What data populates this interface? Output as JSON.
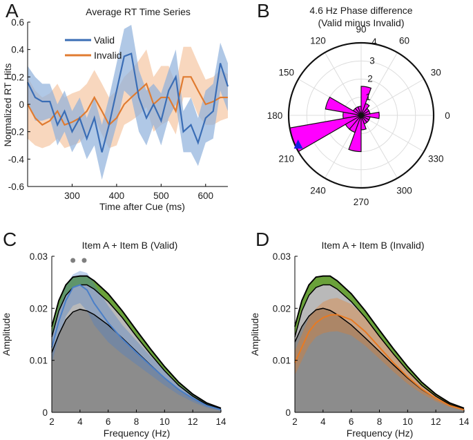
{
  "chart_data": [
    {
      "panel": "A",
      "type": "line",
      "title": "Average RT Time Series",
      "xlabel": "Time after Cue (ms)",
      "ylabel": "Normalized RT Hits",
      "xlim": [
        200,
        650
      ],
      "ylim": [
        -0.6,
        0.6
      ],
      "xticks": [
        300,
        400,
        500,
        600
      ],
      "yticks": [
        -0.6,
        -0.4,
        -0.2,
        0,
        0.2,
        0.4,
        0.6
      ],
      "x": [
        200,
        217,
        233,
        250,
        267,
        283,
        300,
        317,
        333,
        350,
        367,
        383,
        400,
        417,
        433,
        450,
        467,
        483,
        500,
        517,
        533,
        550,
        567,
        583,
        600,
        617,
        633,
        650
      ],
      "series": [
        {
          "name": "Valid",
          "color": "#3a6db5",
          "band_color": "#8fb0dc",
          "values": [
            0.16,
            0.05,
            0.02,
            0.02,
            -0.15,
            -0.05,
            -0.2,
            -0.1,
            -0.25,
            -0.1,
            -0.35,
            -0.15,
            0.1,
            0.35,
            0.37,
            0.05,
            -0.1,
            0.0,
            -0.12,
            0.1,
            0.2,
            -0.2,
            -0.15,
            -0.28,
            -0.1,
            -0.05,
            0.3,
            0.13
          ],
          "lower": [
            0.02,
            -0.12,
            -0.12,
            -0.1,
            -0.3,
            -0.2,
            -0.35,
            -0.25,
            -0.4,
            -0.3,
            -0.55,
            -0.35,
            -0.15,
            0.1,
            0.05,
            -0.2,
            -0.3,
            -0.15,
            -0.3,
            -0.1,
            0.0,
            -0.35,
            -0.35,
            -0.45,
            -0.28,
            -0.25,
            0.1,
            -0.05
          ],
          "upper": [
            0.28,
            0.2,
            0.15,
            0.15,
            0.0,
            0.1,
            -0.05,
            0.05,
            -0.1,
            0.05,
            -0.15,
            0.05,
            0.3,
            0.55,
            0.58,
            0.25,
            0.1,
            0.15,
            0.08,
            0.25,
            0.4,
            -0.05,
            0.05,
            -0.1,
            0.1,
            0.15,
            0.45,
            0.3
          ]
        },
        {
          "name": "Invalid",
          "color": "#e07b30",
          "band_color": "#f5c9a8",
          "values": [
            0.0,
            -0.1,
            -0.15,
            -0.12,
            -0.05,
            -0.15,
            -0.13,
            -0.1,
            -0.05,
            0.05,
            -0.05,
            -0.15,
            -0.1,
            0.0,
            0.05,
            0.1,
            0.15,
            0.0,
            0.05,
            0.05,
            -0.05,
            0.2,
            0.2,
            0.1,
            0.0,
            0.02,
            0.05,
            0.05
          ],
          "lower": [
            -0.25,
            -0.3,
            -0.32,
            -0.3,
            -0.25,
            -0.32,
            -0.3,
            -0.28,
            -0.22,
            -0.1,
            -0.22,
            -0.32,
            -0.3,
            -0.15,
            -0.12,
            -0.08,
            -0.02,
            -0.2,
            -0.15,
            -0.12,
            -0.22,
            0.05,
            0.05,
            -0.08,
            -0.15,
            -0.15,
            -0.12,
            -0.1
          ],
          "upper": [
            0.2,
            0.1,
            0.05,
            0.08,
            0.15,
            0.05,
            0.08,
            0.1,
            0.15,
            0.25,
            0.15,
            0.05,
            0.1,
            0.2,
            0.25,
            0.32,
            0.4,
            0.2,
            0.28,
            0.28,
            0.15,
            0.42,
            0.42,
            0.3,
            0.18,
            0.2,
            0.25,
            0.22
          ]
        }
      ]
    },
    {
      "panel": "B",
      "type": "polar-histogram",
      "title": "4.6 Hz Phase difference",
      "subtitle": "(Valid minus Invalid)",
      "rlim": [
        0,
        4
      ],
      "rticks": [
        "1",
        "2",
        "3",
        "4"
      ],
      "angle_labels": [
        "0",
        "30",
        "60",
        "90",
        "120",
        "150",
        "180",
        "210",
        "240",
        "270",
        "300",
        "330"
      ],
      "bin_width_deg": 20,
      "bin_centers_deg": [
        0,
        20,
        40,
        60,
        80,
        100,
        120,
        140,
        160,
        180,
        200,
        220,
        240,
        260,
        280,
        300,
        320,
        340
      ],
      "counts": [
        1,
        0.5,
        0.5,
        0.7,
        1.6,
        0.5,
        0.5,
        0.5,
        2,
        1,
        4,
        1,
        1,
        2,
        0.8,
        0.5,
        0.5,
        0.5
      ],
      "bar_color": "#ff00ff",
      "mean_marker_deg": 205,
      "mean_marker_r": 3.8,
      "marker_color": "#1520e0"
    },
    {
      "panel": "C",
      "type": "area",
      "title": "Item A + Item B (Valid)",
      "xlabel": "Frequency (Hz)",
      "ylabel": "Amplitude",
      "xlim": [
        2,
        14
      ],
      "ylim": [
        0,
        0.03
      ],
      "xticks": [
        2,
        4,
        6,
        8,
        10,
        12,
        14
      ],
      "yticks": [
        "0",
        "0.01",
        "0.02",
        "0.03"
      ],
      "x": [
        2,
        2.5,
        3,
        3.5,
        4,
        4.5,
        5,
        6,
        7,
        8,
        9,
        10,
        11,
        12,
        13,
        14
      ],
      "black_upper": [
        0.0165,
        0.0215,
        0.0245,
        0.026,
        0.0262,
        0.0262,
        0.0253,
        0.0228,
        0.0195,
        0.0158,
        0.0122,
        0.0088,
        0.0058,
        0.0035,
        0.0018,
        0.0008
      ],
      "black_lower": [
        0.0145,
        0.0195,
        0.0225,
        0.024,
        0.0245,
        0.0245,
        0.0237,
        0.0213,
        0.0182,
        0.0146,
        0.0112,
        0.008,
        0.0052,
        0.0031,
        0.0015,
        0.0006
      ],
      "surrogate_mean": [
        0.0115,
        0.015,
        0.0178,
        0.0193,
        0.0198,
        0.0195,
        0.0188,
        0.0168,
        0.0143,
        0.0117,
        0.0091,
        0.0066,
        0.0044,
        0.0027,
        0.0013,
        0.0005
      ],
      "condition_name": "Valid",
      "condition_mean": [
        0.0125,
        0.0175,
        0.0215,
        0.024,
        0.0245,
        0.0235,
        0.021,
        0.0172,
        0.0141,
        0.0115,
        0.009,
        0.0066,
        0.0044,
        0.0027,
        0.0013,
        0.0005
      ],
      "condition_lower": [
        0.0095,
        0.0145,
        0.0185,
        0.0205,
        0.021,
        0.0195,
        0.0168,
        0.0135,
        0.0112,
        0.0092,
        0.0072,
        0.0052,
        0.0034,
        0.002,
        0.0009,
        0.0003
      ],
      "condition_upper": [
        0.0155,
        0.0205,
        0.0245,
        0.0265,
        0.0272,
        0.0268,
        0.0248,
        0.0205,
        0.0168,
        0.0138,
        0.0108,
        0.008,
        0.0054,
        0.0034,
        0.0018,
        0.0008
      ],
      "condition_color": "#4a7fc8",
      "significant_freqs": [
        3.5,
        4.3
      ]
    },
    {
      "panel": "D",
      "type": "area",
      "title": "Item A + Item B (Invalid)",
      "xlabel": "Frequency (Hz)",
      "ylabel": "Amplitude",
      "xlim": [
        2,
        14
      ],
      "ylim": [
        0,
        0.03
      ],
      "xticks": [
        2,
        4,
        6,
        8,
        10,
        12,
        14
      ],
      "yticks": [
        "0",
        "0.01",
        "0.02",
        "0.03"
      ],
      "x": [
        2,
        2.5,
        3,
        3.5,
        4,
        4.5,
        5,
        6,
        7,
        8,
        9,
        10,
        11,
        12,
        13,
        14
      ],
      "black_upper": [
        0.0165,
        0.0215,
        0.0245,
        0.026,
        0.0262,
        0.0262,
        0.0253,
        0.0228,
        0.0195,
        0.0158,
        0.0122,
        0.0088,
        0.0058,
        0.0035,
        0.0018,
        0.0008
      ],
      "black_lower": [
        0.0145,
        0.0195,
        0.0225,
        0.024,
        0.0245,
        0.0245,
        0.0237,
        0.0213,
        0.0182,
        0.0146,
        0.0112,
        0.008,
        0.0052,
        0.0031,
        0.0015,
        0.0006
      ],
      "surrogate_mean": [
        0.0135,
        0.0165,
        0.0185,
        0.0197,
        0.02,
        0.0196,
        0.0188,
        0.0168,
        0.0143,
        0.0117,
        0.0091,
        0.0066,
        0.0044,
        0.0027,
        0.0013,
        0.0005
      ],
      "condition_name": "Invalid",
      "condition_mean": [
        0.0095,
        0.0125,
        0.0155,
        0.0172,
        0.0182,
        0.0187,
        0.0188,
        0.0178,
        0.0155,
        0.0125,
        0.0095,
        0.0068,
        0.0045,
        0.0027,
        0.0013,
        0.0005
      ],
      "condition_lower": [
        0.0072,
        0.01,
        0.0128,
        0.0145,
        0.0152,
        0.0155,
        0.0156,
        0.0148,
        0.0128,
        0.0103,
        0.0078,
        0.0055,
        0.0036,
        0.0021,
        0.001,
        0.0003
      ],
      "condition_upper": [
        0.0118,
        0.015,
        0.0182,
        0.02,
        0.0212,
        0.0218,
        0.022,
        0.0208,
        0.0182,
        0.0147,
        0.0112,
        0.0081,
        0.0054,
        0.0033,
        0.0017,
        0.0007
      ],
      "condition_color": "#e87a22",
      "significant_freqs": []
    }
  ],
  "panel_labels": {
    "a": "A",
    "b": "B",
    "c": "C",
    "d": "D"
  },
  "legend": {
    "valid": "Valid",
    "invalid": "Invalid"
  },
  "colors": {
    "gray_fill": "#8c8c8c",
    "gray_band": "#b9b9b9",
    "green_band": "#6aa13a",
    "sig_dot": "#7f7f7f"
  }
}
